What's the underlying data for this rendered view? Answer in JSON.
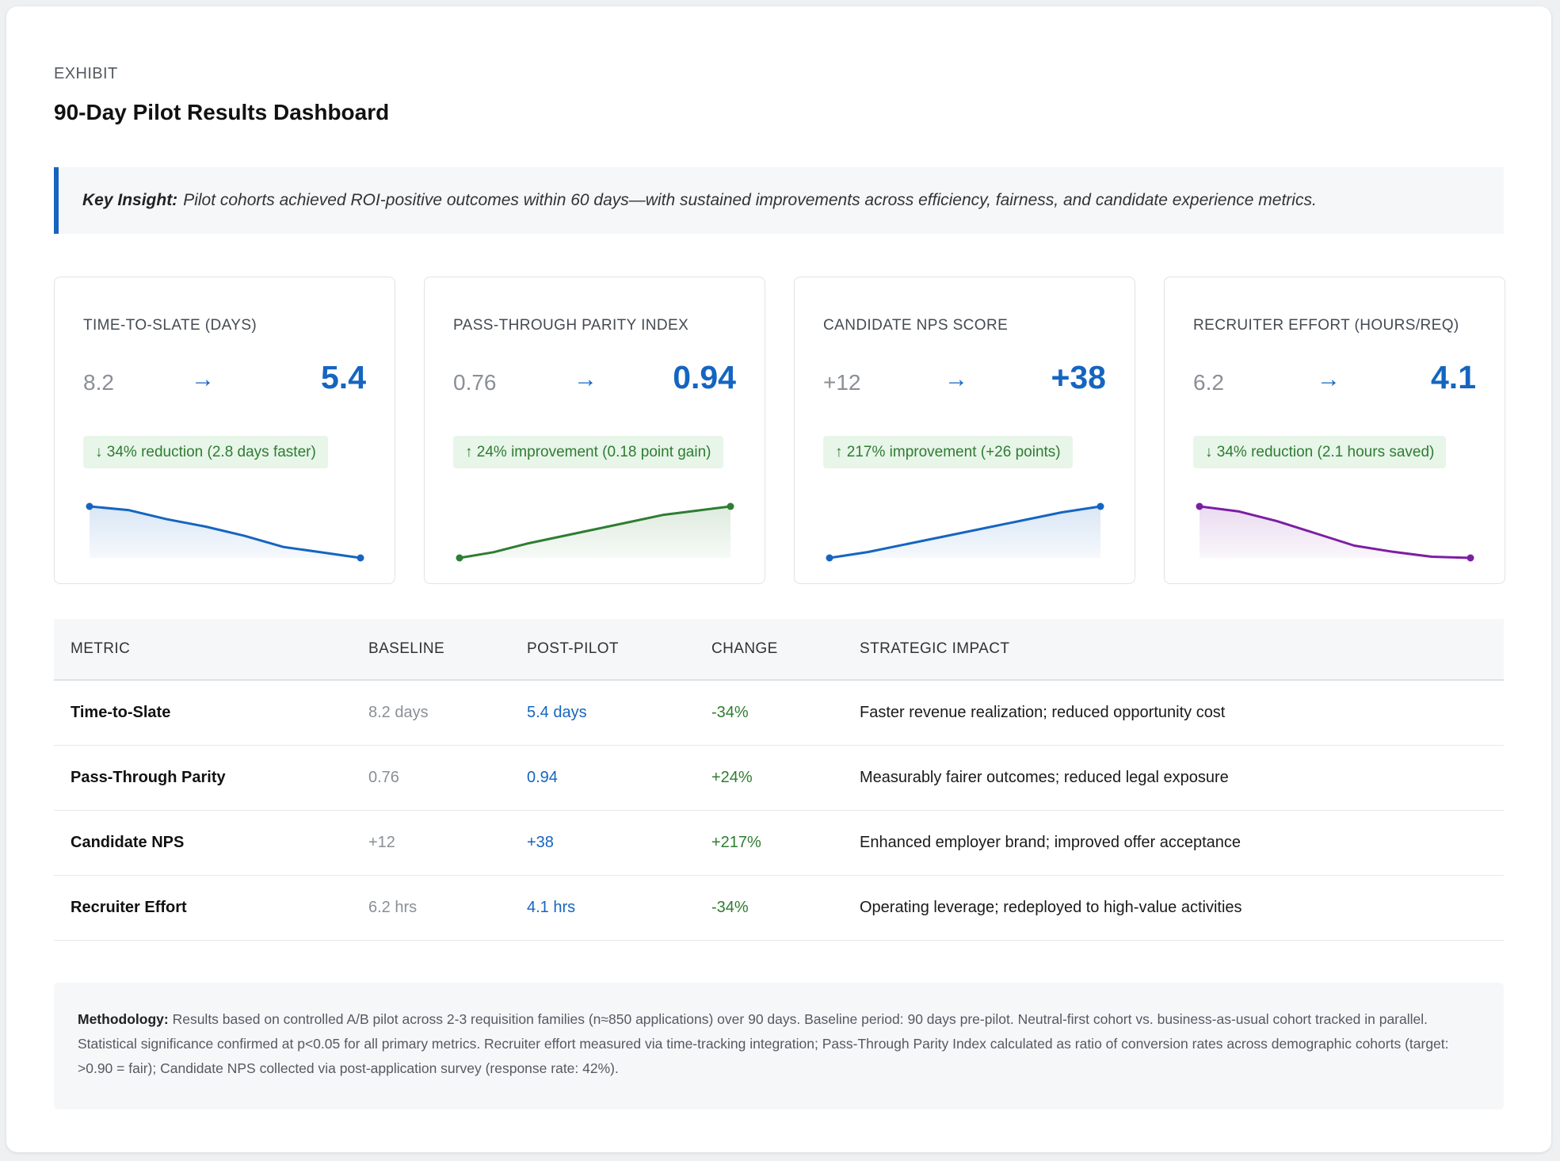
{
  "header": {
    "eyebrow": "EXHIBIT",
    "title": "90-Day Pilot Results Dashboard"
  },
  "insight": {
    "label": "Key Insight:",
    "text": "Pilot cohorts achieved ROI-positive outcomes within 60 days—with sustained improvements across efficiency, fairness, and candidate experience metrics."
  },
  "arrow_glyph": "→",
  "cards": [
    {
      "label": "TIME-TO-SLATE (DAYS)",
      "before": "8.2",
      "after": "5.4",
      "badge": "↓ 34% reduction (2.8 days faster)",
      "trend": [
        8.2,
        8.0,
        7.5,
        7.1,
        6.6,
        6.0,
        5.7,
        5.4
      ],
      "color": "#1565c0"
    },
    {
      "label": "PASS-THROUGH PARITY INDEX",
      "before": "0.76",
      "after": "0.94",
      "badge": "↑ 24% improvement (0.18 point gain)",
      "trend": [
        0.76,
        0.78,
        0.81,
        0.835,
        0.86,
        0.885,
        0.91,
        0.925,
        0.94
      ],
      "color": "#2e7d32"
    },
    {
      "label": "CANDIDATE NPS SCORE",
      "before": "+12",
      "after": "+38",
      "badge": "↑ 217% improvement (+26 points)",
      "trend": [
        12,
        15,
        19,
        23,
        27,
        31,
        35,
        38
      ],
      "color": "#1565c0"
    },
    {
      "label": "RECRUITER EFFORT (HOURS/REQ)",
      "before": "6.2",
      "after": "4.1",
      "badge": "↓ 34% reduction (2.1 hours saved)",
      "trend": [
        6.2,
        6.0,
        5.6,
        5.1,
        4.6,
        4.35,
        4.15,
        4.1
      ],
      "color": "#7b1fa2"
    }
  ],
  "table": {
    "headers": [
      "METRIC",
      "BASELINE",
      "POST-PILOT",
      "CHANGE",
      "STRATEGIC IMPACT"
    ],
    "rows": [
      [
        "Time-to-Slate",
        "8.2 days",
        "5.4 days",
        "-34%",
        "Faster revenue realization; reduced opportunity cost"
      ],
      [
        "Pass-Through Parity",
        "0.76",
        "0.94",
        "+24%",
        "Measurably fairer outcomes; reduced legal exposure"
      ],
      [
        "Candidate NPS",
        "+12",
        "+38",
        "+217%",
        "Enhanced employer brand; improved offer acceptance"
      ],
      [
        "Recruiter Effort",
        "6.2 hrs",
        "4.1 hrs",
        "-34%",
        "Operating leverage; redeployed to high-value activities"
      ]
    ]
  },
  "methodology": {
    "label": "Methodology:",
    "text": "Results based on controlled A/B pilot across 2-3 requisition families (n≈850 applications) over 90 days. Baseline period: 90 days pre-pilot. Neutral-first cohort vs. business-as-usual cohort tracked in parallel. Statistical significance confirmed at p<0.05 for all primary metrics. Recruiter effort measured via time-tracking integration; Pass-Through Parity Index calculated as ratio of conversion rates across demographic cohorts (target: >0.90 = fair); Candidate NPS collected via post-application survey (response rate: 42%)."
  }
}
